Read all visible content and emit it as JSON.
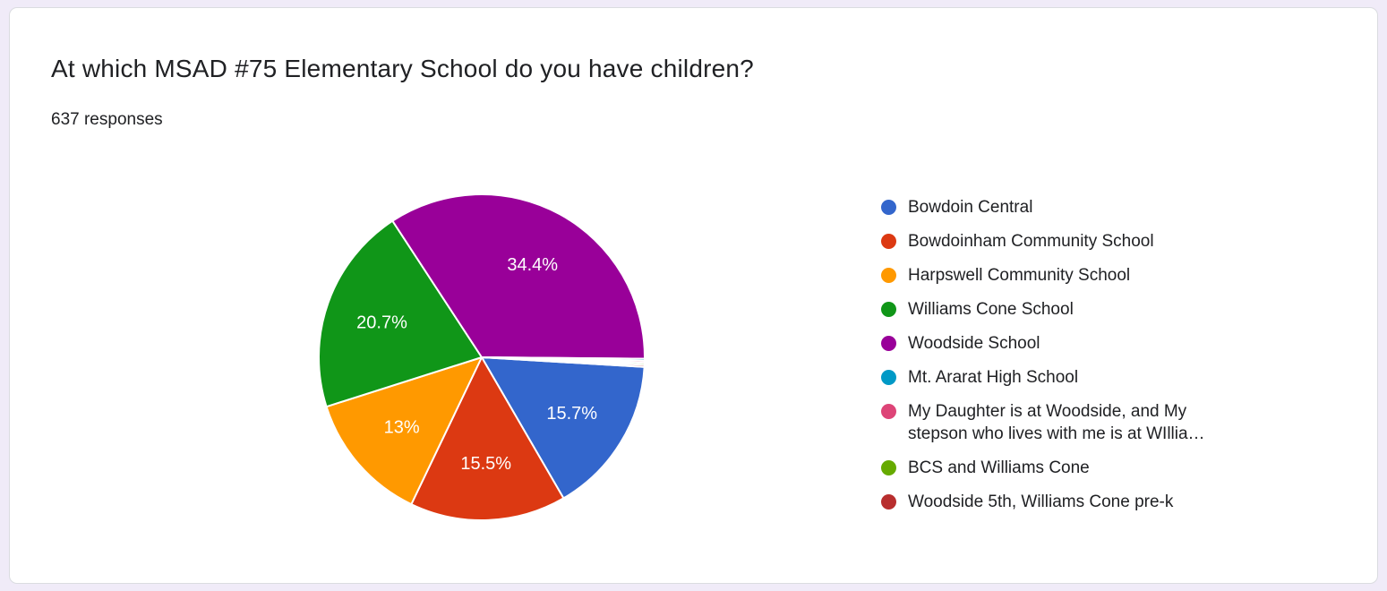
{
  "header": {
    "title": "At which MSAD #75 Elementary School do you have children?",
    "responses": "637 responses"
  },
  "theme": {
    "page_background": "#f0ebf8",
    "card_background": "#ffffff",
    "card_border": "#dadce0",
    "text_color": "#202124",
    "slice_label_color": "#ffffff"
  },
  "chart_data": {
    "type": "pie",
    "title": "At which MSAD #75 Elementary School do you have children?",
    "subtitle": "637 responses",
    "legend_position": "right",
    "start_angle_deg": 93.4,
    "slices": [
      {
        "label": "Bowdoin Central",
        "percent": 15.7,
        "display": "15.7%",
        "color": "#3366cc"
      },
      {
        "label": "Bowdoinham Community School",
        "percent": 15.5,
        "display": "15.5%",
        "color": "#dc3912"
      },
      {
        "label": "Harpswell Community School",
        "percent": 13,
        "display": "13%",
        "color": "#ff9900"
      },
      {
        "label": "Williams Cone School",
        "percent": 20.7,
        "display": "20.7%",
        "color": "#109618"
      },
      {
        "label": "Woodside School",
        "percent": 34.4,
        "display": "34.4%",
        "color": "#990099"
      },
      {
        "label": "Mt. Ararat High School",
        "percent": 0.2,
        "display": "",
        "color": "#0099c6"
      },
      {
        "label": "My Daughter is at Woodside, and My stepson who lives with me is at WIllia…",
        "percent": 0.2,
        "display": "",
        "color": "#dd4477"
      },
      {
        "label": "BCS and Williams Cone",
        "percent": 0.2,
        "display": "",
        "color": "#66aa00"
      },
      {
        "label": "Woodside 5th, Williams Cone pre-k",
        "percent": 0.2,
        "display": "",
        "color": "#b82e2e"
      }
    ]
  }
}
